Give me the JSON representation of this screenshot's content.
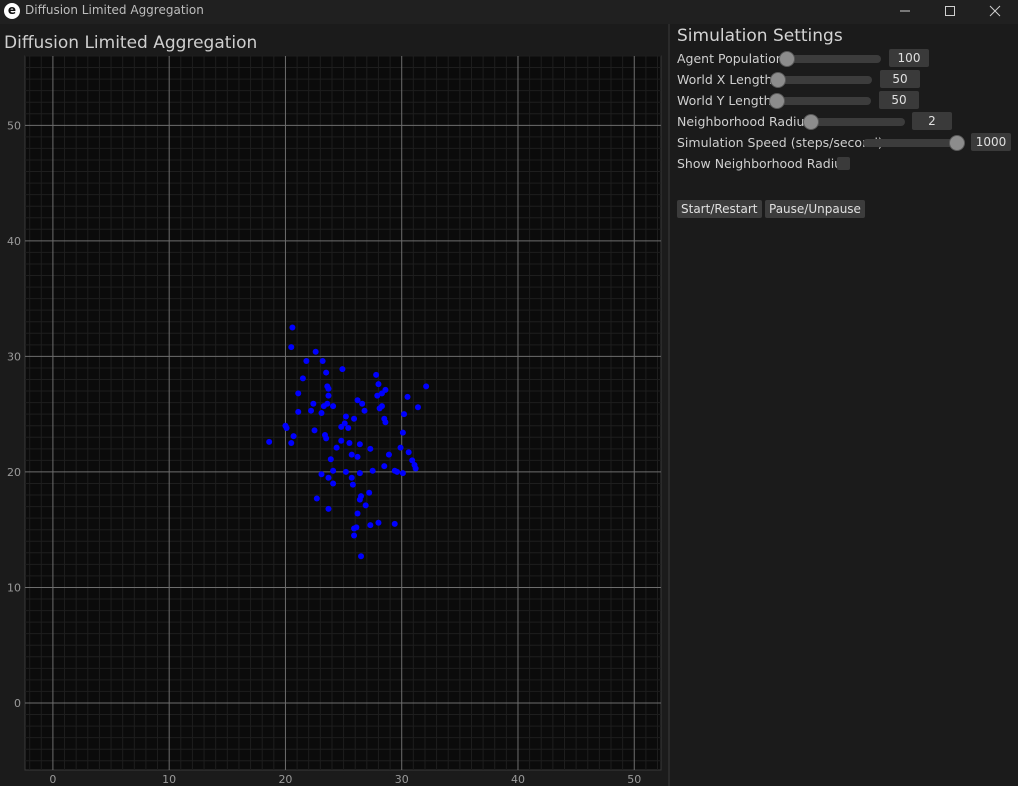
{
  "window": {
    "icon_letter": "e",
    "title": "Diffusion Limited Aggregation"
  },
  "plot": {
    "title": "Diffusion Limited Aggregation",
    "background": "#0b0b0b",
    "point_color": "#0000ff"
  },
  "chart_data": {
    "type": "scatter",
    "title": "Diffusion Limited Aggregation",
    "xlabel": "",
    "ylabel": "",
    "xlim": [
      -2.4,
      52.3
    ],
    "ylim": [
      -5.8,
      56.0
    ],
    "xticks": [
      0,
      10,
      20,
      30,
      40,
      50
    ],
    "yticks": [
      0,
      10,
      20,
      30,
      40,
      50
    ],
    "grid": true,
    "points": [
      [
        20.6,
        32.5
      ],
      [
        20.5,
        30.8
      ],
      [
        22.6,
        30.4
      ],
      [
        23.2,
        29.6
      ],
      [
        21.8,
        29.6
      ],
      [
        24.9,
        28.9
      ],
      [
        23.5,
        28.6
      ],
      [
        27.8,
        28.4
      ],
      [
        21.5,
        28.1
      ],
      [
        28.0,
        27.6
      ],
      [
        32.1,
        27.4
      ],
      [
        23.6,
        27.4
      ],
      [
        23.7,
        27.2
      ],
      [
        28.6,
        27.1
      ],
      [
        28.3,
        26.8
      ],
      [
        27.9,
        26.6
      ],
      [
        23.7,
        26.6
      ],
      [
        21.1,
        26.8
      ],
      [
        30.5,
        26.5
      ],
      [
        26.2,
        26.2
      ],
      [
        23.6,
        25.9
      ],
      [
        22.4,
        25.9
      ],
      [
        23.3,
        25.7
      ],
      [
        26.6,
        25.9
      ],
      [
        24.1,
        25.7
      ],
      [
        28.3,
        25.7
      ],
      [
        28.1,
        25.5
      ],
      [
        31.4,
        25.6
      ],
      [
        26.8,
        25.3
      ],
      [
        22.2,
        25.3
      ],
      [
        23.1,
        25.1
      ],
      [
        21.1,
        25.2
      ],
      [
        30.2,
        25.0
      ],
      [
        25.2,
        24.8
      ],
      [
        25.9,
        24.6
      ],
      [
        28.5,
        24.6
      ],
      [
        28.6,
        24.3
      ],
      [
        25.1,
        24.2
      ],
      [
        24.8,
        23.9
      ],
      [
        25.4,
        23.8
      ],
      [
        20.0,
        24.0
      ],
      [
        20.1,
        23.8
      ],
      [
        22.5,
        23.6
      ],
      [
        30.1,
        23.4
      ],
      [
        20.7,
        23.1
      ],
      [
        23.4,
        23.2
      ],
      [
        23.5,
        22.9
      ],
      [
        24.8,
        22.7
      ],
      [
        25.5,
        22.5
      ],
      [
        18.6,
        22.6
      ],
      [
        20.5,
        22.5
      ],
      [
        26.4,
        22.4
      ],
      [
        24.4,
        22.1
      ],
      [
        29.9,
        22.1
      ],
      [
        27.3,
        22.0
      ],
      [
        30.6,
        21.7
      ],
      [
        28.9,
        21.5
      ],
      [
        25.7,
        21.5
      ],
      [
        26.2,
        21.3
      ],
      [
        30.9,
        21.0
      ],
      [
        23.9,
        21.1
      ],
      [
        31.1,
        20.6
      ],
      [
        28.5,
        20.5
      ],
      [
        31.2,
        20.3
      ],
      [
        25.2,
        20.0
      ],
      [
        24.1,
        20.1
      ],
      [
        27.5,
        20.1
      ],
      [
        29.6,
        20.0
      ],
      [
        30.1,
        19.9
      ],
      [
        23.1,
        19.8
      ],
      [
        29.4,
        20.1
      ],
      [
        26.4,
        19.9
      ],
      [
        25.7,
        19.5
      ],
      [
        23.7,
        19.5
      ],
      [
        25.8,
        18.9
      ],
      [
        24.1,
        19.0
      ],
      [
        27.2,
        18.2
      ],
      [
        26.5,
        17.9
      ],
      [
        22.7,
        17.7
      ],
      [
        26.4,
        17.6
      ],
      [
        26.9,
        17.1
      ],
      [
        23.7,
        16.8
      ],
      [
        26.2,
        16.4
      ],
      [
        28.0,
        15.6
      ],
      [
        29.4,
        15.5
      ],
      [
        27.3,
        15.4
      ],
      [
        26.1,
        15.2
      ],
      [
        25.9,
        15.1
      ],
      [
        25.9,
        14.5
      ],
      [
        26.5,
        12.7
      ]
    ]
  },
  "settings": {
    "title": "Simulation Settings",
    "agent_population": {
      "label": "Agent Population",
      "value": "100",
      "fraction": 0.0
    },
    "world_x": {
      "label": "World X Length",
      "value": "50",
      "fraction": 0.0
    },
    "world_y": {
      "label": "World Y Length",
      "value": "50",
      "fraction": 0.0
    },
    "neighborhood_radius": {
      "label": "Neighborhood Radius",
      "value": "2",
      "fraction": 0.0
    },
    "sim_speed": {
      "label": "Simulation Speed (steps/second)",
      "value": "1000",
      "fraction": 1.0
    },
    "show_radius": {
      "label": "Show Neighborhood Radius",
      "checked": false
    },
    "start_button": "Start/Restart",
    "pause_button": "Pause/Unpause"
  }
}
